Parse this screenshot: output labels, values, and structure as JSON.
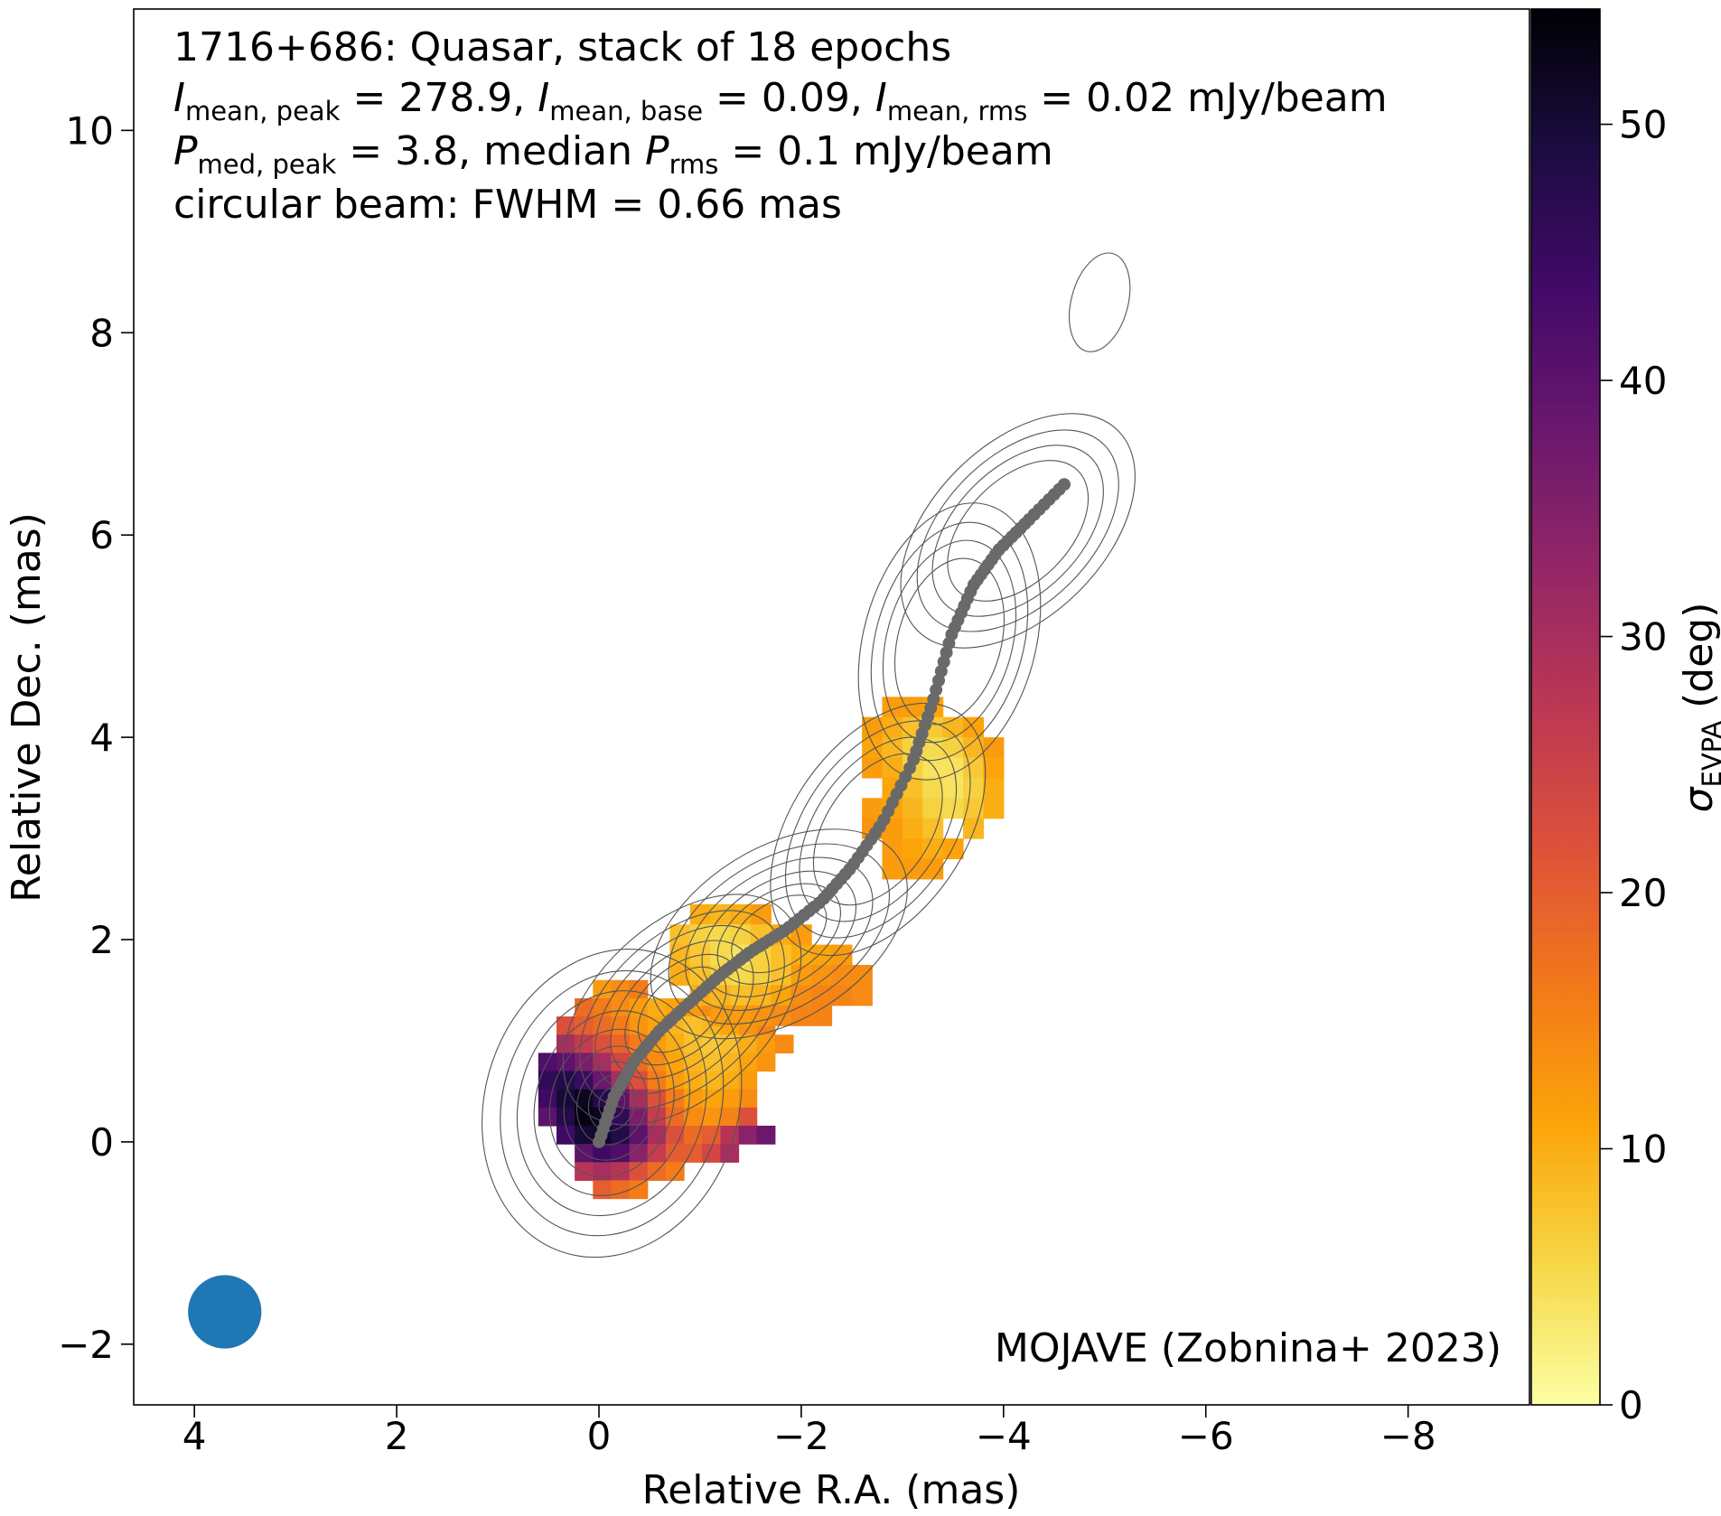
{
  "chart_data": {
    "type": "heatmap",
    "annotations": {
      "line1": "1716+686: Quasar, stack of 18 epochs",
      "line2": {
        "sym": "I",
        "sub1": "mean, peak",
        "val1": " = 278.9, ",
        "sub2": "mean, base",
        "val2": " = 0.09, ",
        "sub3": "mean, rms",
        "val3": " = 0.02 mJy/beam"
      },
      "line3": {
        "sym": "P",
        "sub1": "med, peak",
        "val1": " = 3.8, median ",
        "sub2": "rms",
        "val2": " = 0.1 mJy/beam"
      },
      "line4": "circular beam: FWHM = 0.66 mas",
      "credit": "MOJAVE (Zobnina+ 2023)"
    },
    "xlabel": "Relative R.A. (mas)",
    "ylabel": "Relative Dec. (mas)",
    "xlim": [
      4.6,
      -9.2
    ],
    "ylim": [
      -2.6,
      11.2
    ],
    "x_ticks": [
      4,
      2,
      0,
      -2,
      -4,
      -6,
      -8
    ],
    "x_tick_labels": [
      "4",
      "2",
      "0",
      "−2",
      "−4",
      "−6",
      "−8"
    ],
    "y_ticks": [
      -2,
      0,
      2,
      4,
      6,
      8,
      10
    ],
    "y_tick_labels": [
      "−2",
      "0",
      "2",
      "4",
      "6",
      "8",
      "10"
    ],
    "colorbar": {
      "label_sym": "σ",
      "label_sub": "EVPA",
      "label_unit": " (deg)",
      "range": [
        0,
        54.5
      ],
      "ticks": [
        0,
        10,
        20,
        30,
        40,
        50
      ],
      "tick_labels": [
        "0",
        "10",
        "20",
        "30",
        "40",
        "50"
      ],
      "colormap": "inferno_r"
    },
    "beam": {
      "ra": 3.7,
      "dec": -1.68,
      "fwhm": 0.66,
      "color": "#1f77b4"
    },
    "ridgeline": {
      "color": "#696969",
      "points": [
        [
          0.0,
          0.0
        ],
        [
          -0.15,
          0.45
        ],
        [
          -0.35,
          0.8
        ],
        [
          -0.6,
          1.1
        ],
        [
          -0.9,
          1.38
        ],
        [
          -1.2,
          1.65
        ],
        [
          -1.5,
          1.88
        ],
        [
          -1.85,
          2.1
        ],
        [
          -2.2,
          2.38
        ],
        [
          -2.5,
          2.72
        ],
        [
          -2.8,
          3.15
        ],
        [
          -3.1,
          3.75
        ],
        [
          -3.3,
          4.35
        ],
        [
          -3.48,
          5.0
        ],
        [
          -3.7,
          5.5
        ],
        [
          -3.95,
          5.85
        ],
        [
          -4.25,
          6.15
        ],
        [
          -4.6,
          6.5
        ]
      ]
    },
    "polarization_regions": [
      {
        "name": "core",
        "sigma_evpa_deg": [
          [
            null,
            null,
            null,
            12,
            14,
            16,
            null,
            null,
            null,
            null,
            null,
            null,
            null,
            null,
            null
          ],
          [
            null,
            null,
            18,
            16,
            14,
            12,
            10,
            11,
            12,
            14,
            null,
            null,
            null,
            null,
            null
          ],
          [
            null,
            22,
            20,
            18,
            16,
            13,
            11,
            9,
            8,
            9,
            11,
            13,
            15,
            null,
            null
          ],
          [
            null,
            30,
            26,
            22,
            19,
            16,
            12,
            10,
            8,
            7,
            8,
            10,
            12,
            14,
            null
          ],
          [
            42,
            40,
            36,
            30,
            24,
            18,
            14,
            11,
            9,
            8,
            9,
            11,
            13,
            null,
            null
          ],
          [
            46,
            48,
            45,
            38,
            30,
            22,
            16,
            12,
            10,
            9,
            10,
            12,
            null,
            null,
            null
          ],
          [
            44,
            50,
            52,
            48,
            40,
            30,
            22,
            16,
            12,
            11,
            12,
            14,
            null,
            null,
            null
          ],
          [
            40,
            48,
            53,
            52,
            46,
            36,
            26,
            18,
            14,
            13,
            15,
            22,
            null,
            null,
            null
          ],
          [
            null,
            44,
            50,
            51,
            48,
            40,
            30,
            22,
            18,
            20,
            28,
            34,
            38,
            null,
            null
          ],
          [
            null,
            null,
            40,
            44,
            42,
            34,
            26,
            20,
            20,
            24,
            30,
            null,
            null,
            null,
            null
          ],
          [
            null,
            null,
            28,
            30,
            28,
            22,
            18,
            16,
            null,
            null,
            null,
            null,
            null,
            null,
            null
          ],
          [
            null,
            null,
            null,
            20,
            18,
            16,
            null,
            null,
            null,
            null,
            null,
            null,
            null,
            null,
            null
          ]
        ],
        "ra_start": 0.6,
        "dec_start": 1.6,
        "cell_mas": 0.18
      },
      {
        "name": "inner-jet",
        "sigma_evpa_deg": [
          [
            null,
            10,
            9,
            10,
            12,
            null,
            null,
            null,
            null,
            null
          ],
          [
            8,
            6,
            5,
            6,
            8,
            10,
            12,
            null,
            null,
            null
          ],
          [
            9,
            7,
            5,
            4,
            6,
            8,
            10,
            11,
            12,
            null
          ],
          [
            10,
            8,
            6,
            5,
            6,
            8,
            12,
            13,
            14,
            14
          ],
          [
            null,
            10,
            9,
            8,
            9,
            11,
            14,
            15,
            15,
            14
          ],
          [
            null,
            null,
            12,
            12,
            13,
            14,
            15,
            15,
            null,
            null
          ]
        ],
        "ra_start": -0.7,
        "dec_start": 2.35,
        "cell_mas": 0.2
      },
      {
        "name": "outer-jet",
        "sigma_evpa_deg": [
          [
            null,
            12,
            12,
            11,
            null,
            null,
            null
          ],
          [
            12,
            10,
            8,
            7,
            9,
            11,
            null
          ],
          [
            11,
            9,
            6,
            5,
            6,
            9,
            12
          ],
          [
            12,
            10,
            6,
            4,
            4,
            7,
            11
          ],
          [
            null,
            11,
            8,
            5,
            4,
            6,
            10
          ],
          [
            12,
            11,
            9,
            6,
            5,
            7,
            10
          ],
          [
            13,
            12,
            10,
            8,
            null,
            9,
            null
          ],
          [
            null,
            12,
            11,
            10,
            11,
            null,
            null
          ],
          [
            null,
            12,
            12,
            12,
            null,
            null,
            null
          ]
        ],
        "ra_start": -2.6,
        "dec_start": 4.4,
        "cell_mas": 0.2
      }
    ]
  }
}
